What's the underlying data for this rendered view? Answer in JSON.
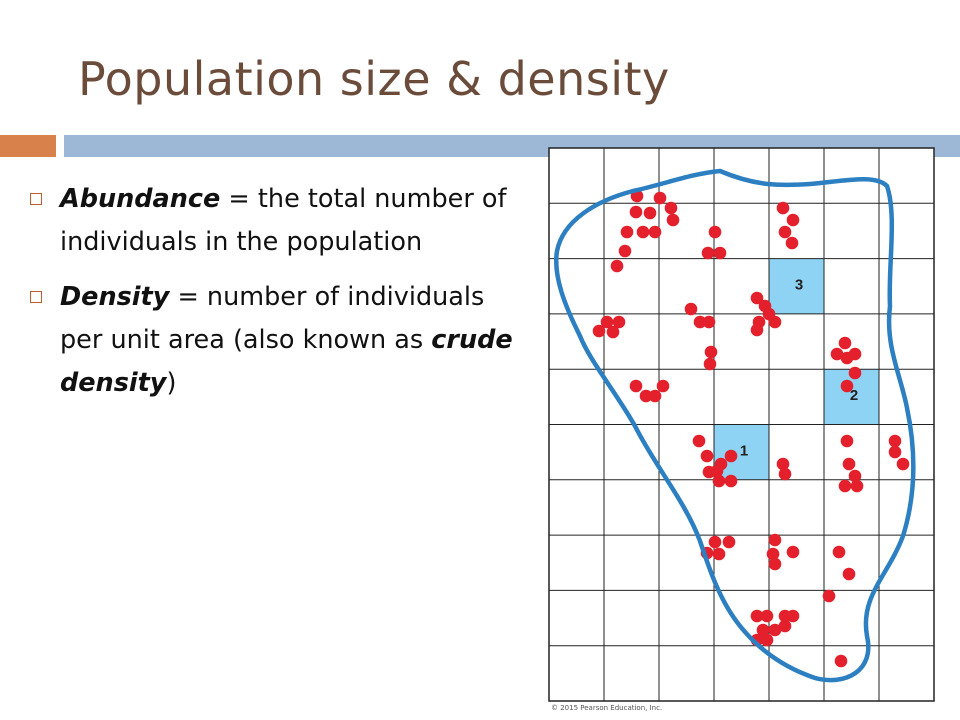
{
  "title": "Population size & density",
  "colors": {
    "title": "#6b4c3b",
    "accent_orange": "#d9814a",
    "accent_blue": "#9db8d6",
    "dot_red": "#e3202b",
    "boundary_blue": "#2c7fc1",
    "sample_cell": "#8fd3f4"
  },
  "bullets": [
    {
      "term": "Abundance",
      "text": " = the total number of individuals in the population"
    },
    {
      "term": "Density",
      "text": " = number of individuals per unit area (also known as ",
      "term2": "crude density",
      "text2": ")"
    }
  ],
  "figure": {
    "grid": {
      "columns": 7,
      "rows": 10
    },
    "sample_quadrats": [
      {
        "label": "1",
        "col": 3,
        "row": 5
      },
      {
        "label": "2",
        "col": 5,
        "row": 4
      },
      {
        "label": "3",
        "col": 4,
        "row": 2
      }
    ],
    "copyright": "© 2015 Pearson Education, Inc."
  }
}
